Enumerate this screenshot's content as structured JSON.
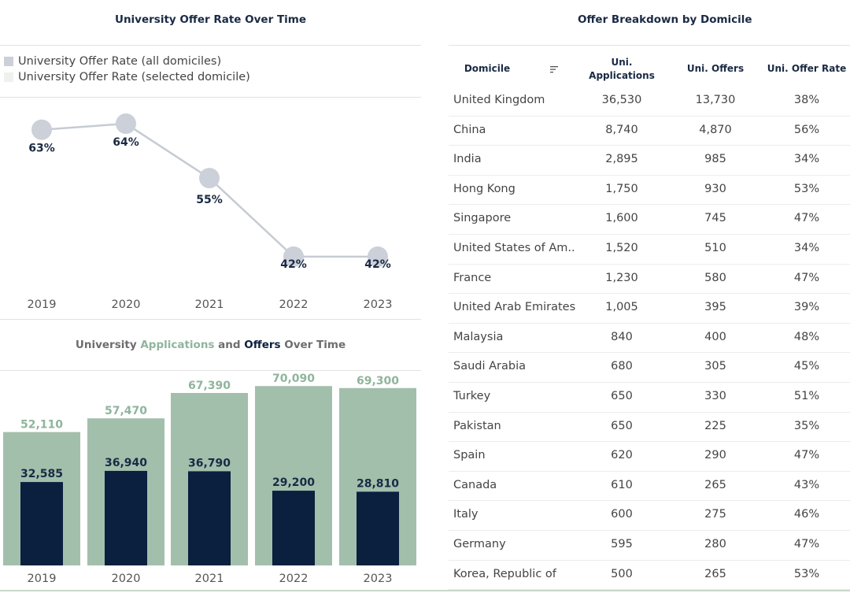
{
  "colors": {
    "navy": "#0b1f3f",
    "sage": "#a2bfac",
    "grey_marker": "#cbd0d9",
    "line": "#c6cbd3",
    "title": "#1a2a44",
    "muted": "#666666"
  },
  "line_chart": {
    "title": "University Offer Rate Over Time",
    "legend": [
      {
        "label": "University Offer Rate (all domiciles)",
        "color": "#cbd0d9"
      },
      {
        "label": "University Offer Rate (selected domicile)",
        "color": "#eef1ee"
      }
    ]
  },
  "bar_chart": {
    "title_parts": [
      "University ",
      "Applications",
      " and ",
      "Offers",
      " Over Time"
    ]
  },
  "table": {
    "title": "Offer Breakdown by Domicile",
    "sort_icon": "sort-icon",
    "headers": {
      "domicile": "Domicile",
      "applications_line1": "Uni.",
      "applications_line2": "Applications",
      "offers": "Uni. Offers",
      "rate": "Uni. Offer Rate"
    },
    "rows": [
      {
        "domicile": "United Kingdom",
        "applications": "36,530",
        "offers": "13,730",
        "rate": "38%"
      },
      {
        "domicile": "China",
        "applications": "8,740",
        "offers": "4,870",
        "rate": "56%"
      },
      {
        "domicile": "India",
        "applications": "2,895",
        "offers": "985",
        "rate": "34%"
      },
      {
        "domicile": "Hong Kong",
        "applications": "1,750",
        "offers": "930",
        "rate": "53%"
      },
      {
        "domicile": "Singapore",
        "applications": "1,600",
        "offers": "745",
        "rate": "47%"
      },
      {
        "domicile": "United States of Am..",
        "applications": "1,520",
        "offers": "510",
        "rate": "34%"
      },
      {
        "domicile": "France",
        "applications": "1,230",
        "offers": "580",
        "rate": "47%"
      },
      {
        "domicile": "United Arab Emirates",
        "applications": "1,005",
        "offers": "395",
        "rate": "39%"
      },
      {
        "domicile": "Malaysia",
        "applications": "840",
        "offers": "400",
        "rate": "48%"
      },
      {
        "domicile": "Saudi Arabia",
        "applications": "680",
        "offers": "305",
        "rate": "45%"
      },
      {
        "domicile": "Turkey",
        "applications": "650",
        "offers": "330",
        "rate": "51%"
      },
      {
        "domicile": "Pakistan",
        "applications": "650",
        "offers": "225",
        "rate": "35%"
      },
      {
        "domicile": "Spain",
        "applications": "620",
        "offers": "290",
        "rate": "47%"
      },
      {
        "domicile": "Canada",
        "applications": "610",
        "offers": "265",
        "rate": "43%"
      },
      {
        "domicile": "Italy",
        "applications": "600",
        "offers": "275",
        "rate": "46%"
      },
      {
        "domicile": "Germany",
        "applications": "595",
        "offers": "280",
        "rate": "47%"
      },
      {
        "domicile": "Korea, Republic of",
        "applications": "500",
        "offers": "265",
        "rate": "53%"
      }
    ]
  },
  "chart_data": [
    {
      "type": "line",
      "title": "University Offer Rate Over Time",
      "categories": [
        "2019",
        "2020",
        "2021",
        "2022",
        "2023"
      ],
      "series": [
        {
          "name": "University Offer Rate (all domiciles)",
          "values": [
            63,
            64,
            55,
            42,
            42
          ],
          "labels": [
            "63%",
            "64%",
            "55%",
            "42%",
            "42%"
          ]
        }
      ],
      "ylim": [
        36,
        67
      ],
      "xlabel": "",
      "ylabel": ""
    },
    {
      "type": "bar",
      "title": "University Applications and Offers Over Time",
      "categories": [
        "2019",
        "2020",
        "2021",
        "2022",
        "2023"
      ],
      "series": [
        {
          "name": "Applications",
          "values": [
            52110,
            57470,
            67390,
            70090,
            69300
          ],
          "labels": [
            "52,110",
            "57,470",
            "67,390",
            "70,090",
            "69,300"
          ]
        },
        {
          "name": "Offers",
          "values": [
            32585,
            36940,
            36790,
            29200,
            28810
          ],
          "labels": [
            "32,585",
            "36,940",
            "36,790",
            "29,200",
            "28,810"
          ]
        }
      ],
      "ylim": [
        0,
        76000
      ],
      "xlabel": "",
      "ylabel": ""
    }
  ]
}
